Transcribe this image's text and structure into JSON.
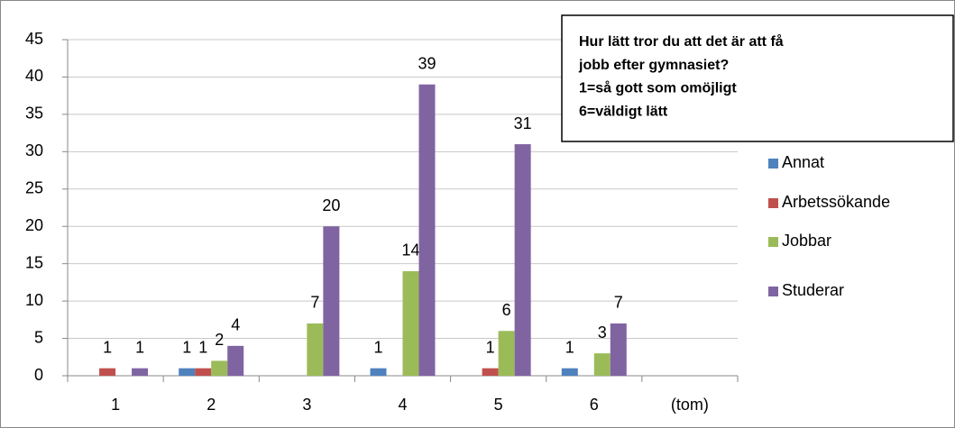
{
  "chart_data": {
    "type": "bar",
    "title": [
      "Hur lätt tror du att det är att få",
      "jobb efter gymnasiet?",
      "1=så gott som omöjligt",
      "6=väldigt lätt"
    ],
    "categories": [
      "1",
      "2",
      "3",
      "4",
      "5",
      "6",
      "(tom)"
    ],
    "series": [
      {
        "name": "Annat",
        "color": "#4f81bd",
        "values": [
          null,
          1,
          null,
          1,
          null,
          1,
          null
        ]
      },
      {
        "name": "Arbetssökande",
        "color": "#c0504d",
        "values": [
          1,
          1,
          null,
          null,
          1,
          null,
          null
        ]
      },
      {
        "name": "Jobbar",
        "color": "#9bbb59",
        "values": [
          null,
          2,
          7,
          14,
          6,
          3,
          null
        ]
      },
      {
        "name": "Studerar",
        "color": "#8064a2",
        "values": [
          1,
          4,
          20,
          39,
          31,
          7,
          null
        ]
      }
    ],
    "ylim": [
      0,
      45
    ],
    "yticks": [
      0,
      5,
      10,
      15,
      20,
      25,
      30,
      35,
      40,
      45
    ],
    "grid": true,
    "legend": "right"
  }
}
